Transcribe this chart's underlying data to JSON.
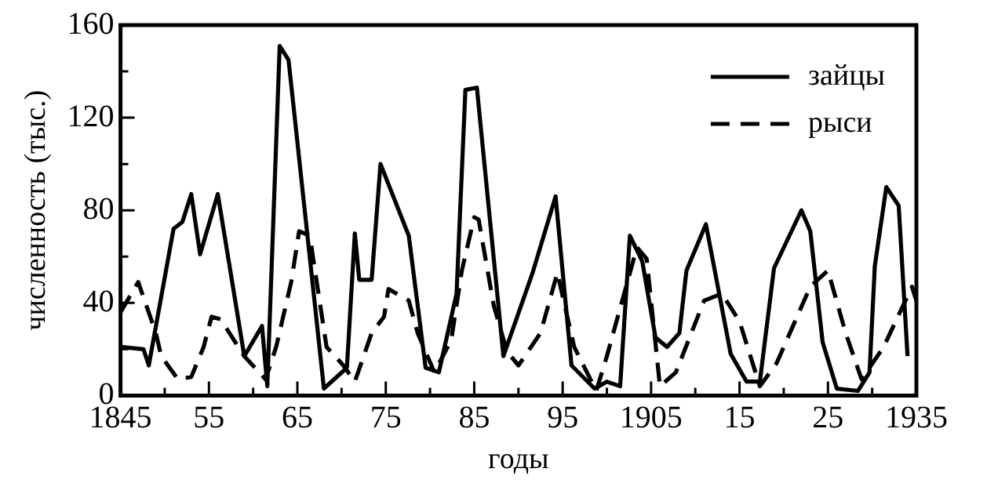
{
  "chart_data": {
    "type": "line",
    "xlabel": "годы",
    "ylabel": "численность (тыс.)",
    "xlim": [
      1845,
      1935
    ],
    "xticks": [
      {
        "value": 1845,
        "label": "1845"
      },
      {
        "value": 1850,
        "label": null
      },
      {
        "value": 1855,
        "label": "55"
      },
      {
        "value": 1860,
        "label": null
      },
      {
        "value": 1865,
        "label": "65"
      },
      {
        "value": 1870,
        "label": null
      },
      {
        "value": 1875,
        "label": "75"
      },
      {
        "value": 1880,
        "label": null
      },
      {
        "value": 1885,
        "label": "85"
      },
      {
        "value": 1890,
        "label": null
      },
      {
        "value": 1895,
        "label": "95"
      },
      {
        "value": 1900,
        "label": null
      },
      {
        "value": 1905,
        "label": "1905"
      },
      {
        "value": 1910,
        "label": null
      },
      {
        "value": 1915,
        "label": "15"
      },
      {
        "value": 1920,
        "label": null
      },
      {
        "value": 1925,
        "label": "25"
      },
      {
        "value": 1930,
        "label": null
      },
      {
        "value": 1935,
        "label": "1935"
      }
    ],
    "ylim": [
      0,
      160
    ],
    "yticks": [
      0,
      {
        "value": 20,
        "label": null
      },
      40,
      {
        "value": 60,
        "label": null
      },
      80,
      {
        "value": 100,
        "label": null
      },
      120,
      {
        "value": 140,
        "label": null
      },
      160
    ],
    "grid": false,
    "legend": "top right",
    "marker": "none",
    "series": [
      {
        "name": "зайцы",
        "color": "#000000",
        "line_style": "solid",
        "x": [
          1845,
          1847.6,
          1848.2,
          1851,
          1852,
          1853,
          1854,
          1856,
          1859,
          1861,
          1861.6,
          1863,
          1864,
          1868,
          1870.6,
          1871.5,
          1872,
          1873.4,
          1874.4,
          1877.6,
          1879.5,
          1881,
          1883,
          1884,
          1885.3,
          1888.3,
          1891.6,
          1894.2,
          1896,
          1898.6,
          1900,
          1901.5,
          1902.6,
          1904,
          1905.5,
          1906.8,
          1908.2,
          1909,
          1911.2,
          1914,
          1915.8,
          1917.3,
          1918.9,
          1922,
          1923,
          1924.4,
          1926,
          1928.4,
          1929.7,
          1930.3,
          1931.6,
          1933,
          1934
        ],
        "values": [
          21,
          20,
          13,
          72,
          75,
          87,
          61,
          87,
          17,
          30,
          4,
          151,
          145,
          3,
          12,
          70,
          50,
          50,
          100,
          69,
          12,
          10,
          44,
          132,
          133,
          17,
          53,
          86,
          13,
          3,
          6,
          4,
          69,
          58,
          25,
          21,
          27,
          54,
          74,
          18,
          6,
          6,
          55,
          80,
          71,
          23,
          3,
          2,
          10,
          56,
          90,
          82,
          17
        ]
      },
      {
        "name": "рыси",
        "color": "#000000",
        "line_style": "dashed",
        "x": [
          1845,
          1847,
          1849,
          1849.6,
          1851.5,
          1853,
          1854.4,
          1855.3,
          1856.3,
          1859,
          1861.4,
          1862.6,
          1864.3,
          1865.2,
          1866.4,
          1868.3,
          1870.2,
          1871.5,
          1873.4,
          1874.8,
          1875.3,
          1877.6,
          1878.6,
          1880.5,
          1882.4,
          1883.6,
          1885,
          1885.5,
          1887.2,
          1888.7,
          1890,
          1892.5,
          1894.4,
          1896.3,
          1898.8,
          1900,
          1903.4,
          1904.5,
          1906,
          1907.8,
          1911,
          1913,
          1915,
          1917.3,
          1919.2,
          1923,
          1925,
          1927,
          1928.8,
          1931.3,
          1934.5,
          1935
        ],
        "values": [
          36,
          49,
          27,
          17,
          7,
          8,
          21,
          34,
          33,
          17,
          7,
          21,
          49,
          71,
          69,
          21,
          13,
          6,
          27,
          34,
          46,
          41,
          27,
          10,
          24,
          54,
          77,
          76,
          39,
          19,
          13,
          27,
          53,
          21,
          2,
          17,
          64,
          59,
          4,
          10,
          41,
          44,
          32,
          4,
          14,
          47,
          54,
          27,
          7,
          21,
          47,
          41
        ]
      }
    ]
  }
}
